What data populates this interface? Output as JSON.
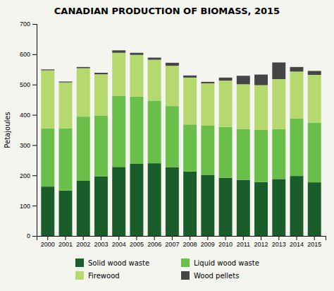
{
  "chart_data": {
    "type": "bar",
    "stacked": true,
    "title": "CANADIAN PRODUCTION OF BIOMASS, 2015",
    "y_label": "Petajoules",
    "categories": [
      "2000",
      "2001",
      "2002",
      "2003",
      "2004",
      "2005",
      "2006",
      "2007",
      "2008",
      "2009",
      "2010",
      "2011",
      "2012",
      "2013",
      "2014",
      "2015"
    ],
    "series": [
      {
        "name": "Solid wood waste",
        "color": "#1a5c2a",
        "values": [
          163,
          150,
          182,
          197,
          228,
          238,
          240,
          227,
          213,
          202,
          192,
          185,
          178,
          188,
          198,
          177
        ]
      },
      {
        "name": "Liquid wood waste",
        "color": "#6abf4b",
        "values": [
          192,
          205,
          212,
          200,
          235,
          222,
          207,
          202,
          155,
          162,
          168,
          168,
          172,
          165,
          190,
          197
        ]
      },
      {
        "name": "Firewood",
        "color": "#b5d96e",
        "values": [
          192,
          152,
          160,
          137,
          142,
          138,
          135,
          133,
          155,
          140,
          153,
          148,
          148,
          165,
          155,
          158
        ]
      },
      {
        "name": "Wood pellets",
        "color": "#454545",
        "values": [
          3,
          3,
          4,
          5,
          8,
          7,
          7,
          10,
          7,
          5,
          10,
          28,
          35,
          55,
          15,
          13
        ]
      }
    ],
    "ylim": [
      0,
      700
    ],
    "yticks": [
      0,
      100,
      200,
      300,
      400,
      500,
      600,
      700
    ],
    "grid": false,
    "legend": "bottom"
  }
}
